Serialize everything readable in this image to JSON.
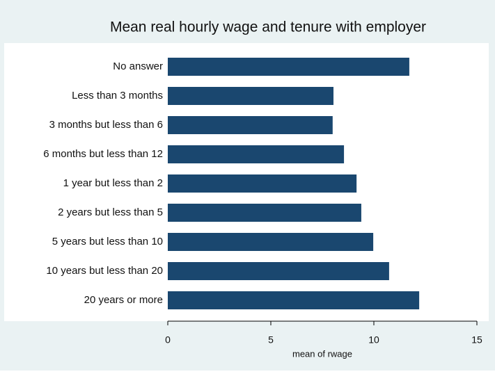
{
  "chart_data": {
    "type": "bar",
    "orientation": "horizontal",
    "title": "Mean real hourly wage and tenure with employer",
    "xlabel": "mean of rwage",
    "categories": [
      "No answer",
      "Less than 3 months",
      "3 months but less than 6",
      "6 months but less than 12",
      "1 year but less than 2",
      "2 years but less than 5",
      "5 years but less than 10",
      "10 years but less than 20",
      "20 years or more"
    ],
    "values": [
      11.72,
      8.04,
      8.0,
      8.55,
      9.16,
      9.39,
      9.97,
      10.74,
      12.2
    ],
    "color": "#1a476f",
    "xlim": [
      0,
      15
    ],
    "xticks": [
      0,
      5,
      10,
      15
    ],
    "grid": false
  }
}
